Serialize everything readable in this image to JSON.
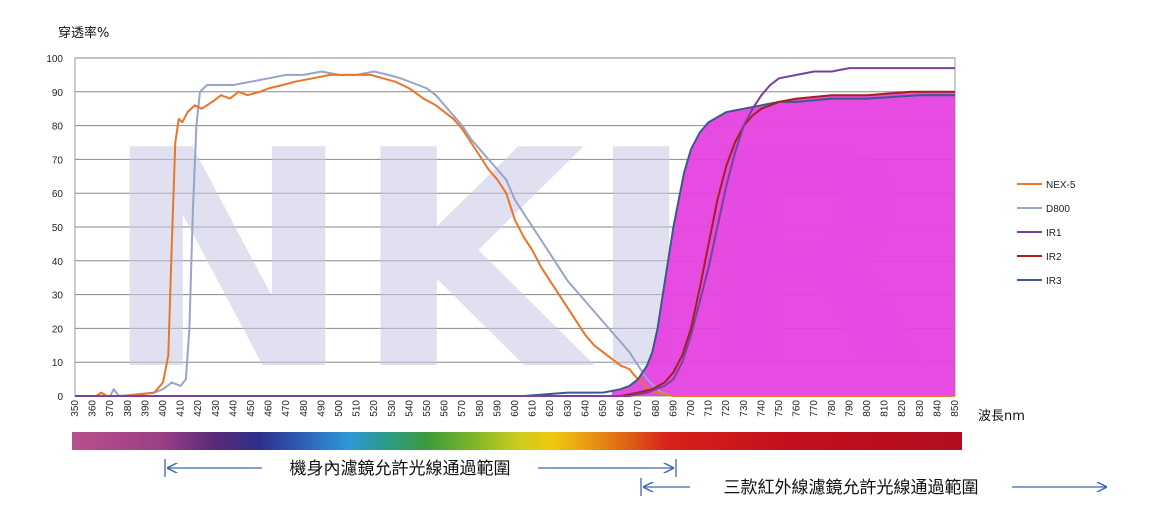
{
  "chart_data": {
    "type": "line",
    "ylabel": "穿透率%",
    "xlabel": "波長nm",
    "xlim": [
      350,
      850
    ],
    "ylim": [
      0,
      100
    ],
    "x_ticks": [
      350,
      360,
      370,
      380,
      390,
      400,
      410,
      420,
      430,
      440,
      450,
      460,
      470,
      480,
      490,
      500,
      510,
      520,
      530,
      540,
      550,
      560,
      570,
      580,
      590,
      600,
      610,
      620,
      630,
      640,
      650,
      660,
      670,
      680,
      690,
      700,
      710,
      720,
      730,
      740,
      750,
      760,
      770,
      780,
      790,
      800,
      810,
      820,
      830,
      840,
      850
    ],
    "y_ticks": [
      0,
      10,
      20,
      30,
      40,
      50,
      60,
      70,
      80,
      90,
      100
    ],
    "grid": "horizontal",
    "legend_position": "right",
    "watermark": "NKIR",
    "series": [
      {
        "name": "NEX-5",
        "color": "#e8762a",
        "points": [
          [
            350,
            0
          ],
          [
            362,
            0
          ],
          [
            365,
            1
          ],
          [
            368,
            0
          ],
          [
            380,
            0
          ],
          [
            395,
            1
          ],
          [
            400,
            4
          ],
          [
            403,
            12
          ],
          [
            405,
            45
          ],
          [
            407,
            75
          ],
          [
            409,
            82
          ],
          [
            411,
            81
          ],
          [
            414,
            84
          ],
          [
            418,
            86
          ],
          [
            422,
            85
          ],
          [
            428,
            87
          ],
          [
            433,
            89
          ],
          [
            438,
            88
          ],
          [
            443,
            90
          ],
          [
            448,
            89
          ],
          [
            455,
            90
          ],
          [
            460,
            91
          ],
          [
            468,
            92
          ],
          [
            475,
            93
          ],
          [
            485,
            94
          ],
          [
            495,
            95
          ],
          [
            505,
            95
          ],
          [
            512,
            95
          ],
          [
            518,
            95
          ],
          [
            525,
            94
          ],
          [
            532,
            93
          ],
          [
            540,
            91
          ],
          [
            548,
            88
          ],
          [
            555,
            86
          ],
          [
            560,
            84
          ],
          [
            565,
            82
          ],
          [
            570,
            79
          ],
          [
            575,
            75
          ],
          [
            580,
            71
          ],
          [
            585,
            67
          ],
          [
            590,
            64
          ],
          [
            595,
            60
          ],
          [
            600,
            52
          ],
          [
            605,
            47
          ],
          [
            610,
            43
          ],
          [
            615,
            38
          ],
          [
            620,
            34
          ],
          [
            625,
            30
          ],
          [
            630,
            26
          ],
          [
            635,
            22
          ],
          [
            640,
            18
          ],
          [
            645,
            15
          ],
          [
            650,
            13
          ],
          [
            655,
            11
          ],
          [
            660,
            9
          ],
          [
            665,
            8
          ],
          [
            668,
            6
          ],
          [
            672,
            4
          ],
          [
            676,
            2
          ],
          [
            680,
            1
          ],
          [
            690,
            0
          ],
          [
            850,
            0
          ]
        ]
      },
      {
        "name": "D800",
        "color": "#98a4c8",
        "points": [
          [
            350,
            0
          ],
          [
            370,
            0
          ],
          [
            372,
            2
          ],
          [
            375,
            0
          ],
          [
            395,
            1
          ],
          [
            400,
            2
          ],
          [
            405,
            4
          ],
          [
            410,
            3
          ],
          [
            413,
            5
          ],
          [
            415,
            20
          ],
          [
            417,
            55
          ],
          [
            419,
            80
          ],
          [
            421,
            90
          ],
          [
            425,
            92
          ],
          [
            432,
            92
          ],
          [
            440,
            92
          ],
          [
            450,
            93
          ],
          [
            460,
            94
          ],
          [
            470,
            95
          ],
          [
            480,
            95
          ],
          [
            490,
            96
          ],
          [
            500,
            95
          ],
          [
            510,
            95
          ],
          [
            520,
            96
          ],
          [
            528,
            95
          ],
          [
            535,
            94
          ],
          [
            545,
            92
          ],
          [
            550,
            91
          ],
          [
            555,
            89
          ],
          [
            560,
            86
          ],
          [
            565,
            83
          ],
          [
            570,
            80
          ],
          [
            575,
            76
          ],
          [
            580,
            73
          ],
          [
            585,
            70
          ],
          [
            590,
            67
          ],
          [
            595,
            64
          ],
          [
            600,
            58
          ],
          [
            605,
            54
          ],
          [
            610,
            50
          ],
          [
            615,
            46
          ],
          [
            620,
            42
          ],
          [
            625,
            38
          ],
          [
            630,
            34
          ],
          [
            635,
            31
          ],
          [
            640,
            28
          ],
          [
            645,
            25
          ],
          [
            650,
            22
          ],
          [
            655,
            19
          ],
          [
            660,
            16
          ],
          [
            665,
            13
          ],
          [
            670,
            9
          ],
          [
            675,
            5
          ],
          [
            679,
            3
          ],
          [
            683,
            1
          ],
          [
            690,
            0
          ],
          [
            850,
            0
          ]
        ]
      },
      {
        "name": "IR1",
        "color": "#7b3f9e",
        "points": [
          [
            350,
            0
          ],
          [
            665,
            0
          ],
          [
            675,
            1
          ],
          [
            685,
            3
          ],
          [
            690,
            5
          ],
          [
            695,
            10
          ],
          [
            700,
            18
          ],
          [
            705,
            28
          ],
          [
            710,
            38
          ],
          [
            715,
            50
          ],
          [
            720,
            62
          ],
          [
            725,
            72
          ],
          [
            730,
            80
          ],
          [
            735,
            85
          ],
          [
            740,
            89
          ],
          [
            745,
            92
          ],
          [
            750,
            94
          ],
          [
            760,
            95
          ],
          [
            770,
            96
          ],
          [
            780,
            96
          ],
          [
            790,
            97
          ],
          [
            800,
            97
          ],
          [
            820,
            97
          ],
          [
            850,
            97
          ]
        ]
      },
      {
        "name": "IR2",
        "color": "#a51f1f",
        "points": [
          [
            350,
            0
          ],
          [
            660,
            0
          ],
          [
            670,
            1
          ],
          [
            678,
            2
          ],
          [
            685,
            4
          ],
          [
            690,
            7
          ],
          [
            695,
            12
          ],
          [
            700,
            20
          ],
          [
            705,
            32
          ],
          [
            710,
            45
          ],
          [
            715,
            58
          ],
          [
            720,
            68
          ],
          [
            725,
            75
          ],
          [
            730,
            80
          ],
          [
            735,
            83
          ],
          [
            740,
            85
          ],
          [
            750,
            87
          ],
          [
            760,
            88
          ],
          [
            780,
            89
          ],
          [
            800,
            89
          ],
          [
            825,
            90
          ],
          [
            850,
            90
          ]
        ]
      },
      {
        "name": "IR3",
        "color": "#3a5a8c",
        "points": [
          [
            350,
            0
          ],
          [
            605,
            0
          ],
          [
            630,
            1
          ],
          [
            650,
            1
          ],
          [
            660,
            2
          ],
          [
            665,
            3
          ],
          [
            670,
            5
          ],
          [
            675,
            9
          ],
          [
            678,
            13
          ],
          [
            681,
            20
          ],
          [
            684,
            30
          ],
          [
            687,
            40
          ],
          [
            690,
            50
          ],
          [
            693,
            58
          ],
          [
            696,
            66
          ],
          [
            700,
            73
          ],
          [
            705,
            78
          ],
          [
            710,
            81
          ],
          [
            720,
            84
          ],
          [
            730,
            85
          ],
          [
            740,
            86
          ],
          [
            750,
            87
          ],
          [
            760,
            87
          ],
          [
            780,
            88
          ],
          [
            800,
            88
          ],
          [
            830,
            89
          ],
          [
            850,
            89
          ]
        ]
      }
    ]
  },
  "spectrum_bar": {
    "label": "visible-to-infrared color spectrum"
  },
  "ranges": [
    {
      "text": "機身內濾鏡允許光線通過範圍"
    },
    {
      "text": "三款紅外線濾鏡允許光線通過範圍"
    }
  ]
}
